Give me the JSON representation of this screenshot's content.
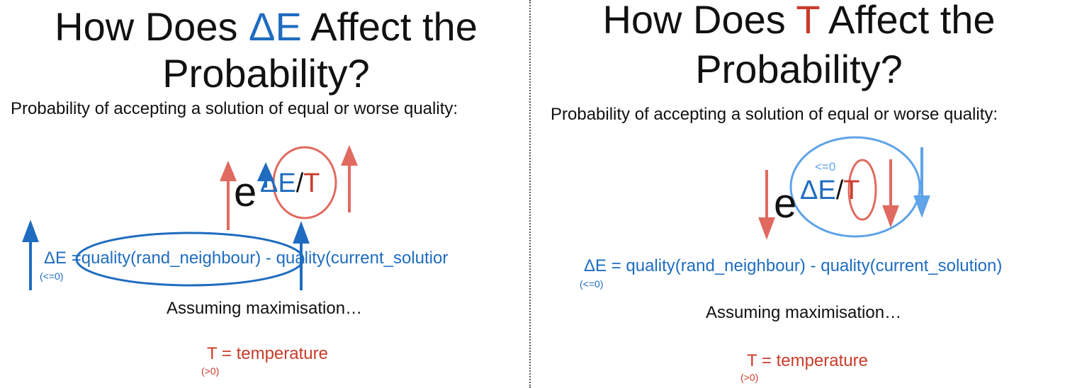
{
  "left": {
    "title_pre": "How Does ",
    "title_var": "ΔE",
    "title_post": " Affect the",
    "title_line2": "Probability?",
    "subtitle": "Probability of accepting a solution of equal or worse quality:",
    "exp_base": "e",
    "exp_delta": "ΔE",
    "exp_slash": "/",
    "exp_t": "T",
    "formula_lhs": "ΔE =",
    "formula_q1": "quality(rand_neighbour)",
    "formula_rest": " -  quality(current_solutior",
    "delta_note": "(<=0)",
    "assume": "Assuming maximisation…",
    "temp": "T = temperature",
    "temp_note": "(>0)"
  },
  "right": {
    "title_pre": "How Does ",
    "title_var": "T",
    "title_post": " Affect the",
    "title_line2": "Probability?",
    "subtitle": "Probability of accepting a solution of equal or worse quality:",
    "exp_base": "e",
    "exp_delta": "ΔE",
    "exp_slash": "/",
    "exp_t": "T",
    "exp_note": "<=0",
    "formula": "ΔE = quality(rand_neighbour)  -  quality(current_solution)",
    "delta_note": "(<=0)",
    "assume": "Assuming maximisation…",
    "temp": "T = temperature",
    "temp_note": "(>0)"
  },
  "colors": {
    "delta_blue": "#1f6cc0",
    "temp_red": "#c93c2a",
    "annotation_red": "#e06a60",
    "annotation_light_blue": "#5fa3e8",
    "divider": "#555555"
  }
}
